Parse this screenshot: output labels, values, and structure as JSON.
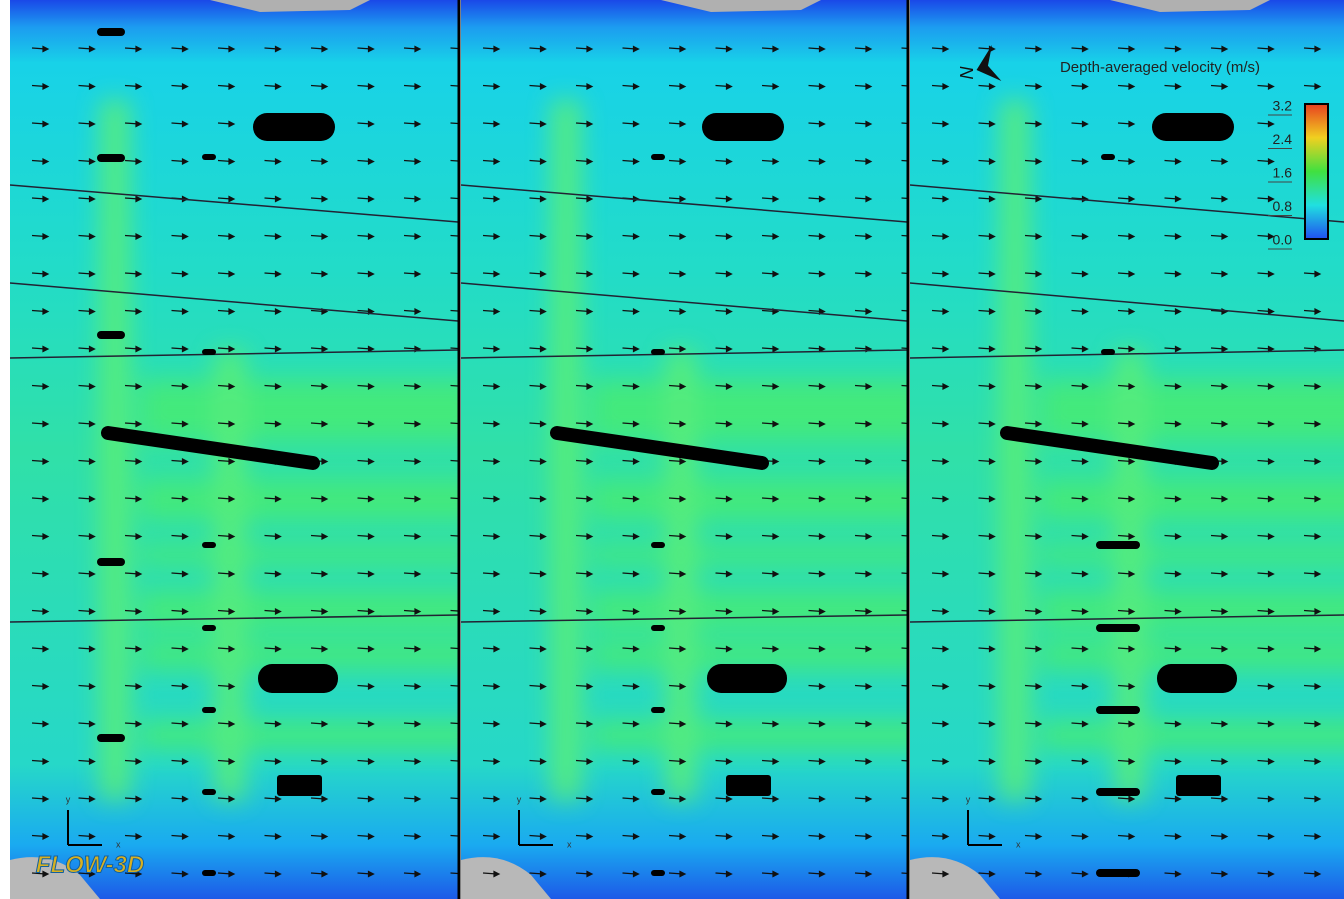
{
  "legend": {
    "title": "Depth-averaged velocity (m/s)",
    "ticks": [
      "3.2",
      "2.4",
      "1.6",
      "0.8",
      "0.0"
    ]
  },
  "compass": "N",
  "axes": {
    "x": "x",
    "y": "y"
  },
  "logo": "FLOW-3D"
}
